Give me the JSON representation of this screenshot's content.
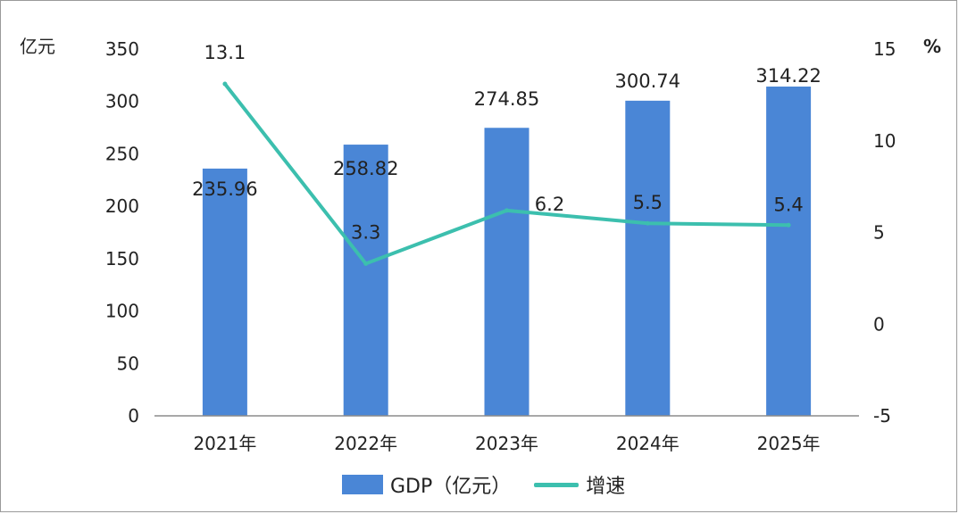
{
  "chart_data": {
    "type": "bar",
    "categories": [
      "2021年",
      "2022年",
      "2023年",
      "2024年",
      "2025年"
    ],
    "series": [
      {
        "name": "GDP（亿元）",
        "type": "bar",
        "axis": "left",
        "color": "#4a86d6",
        "values": [
          235.96,
          258.82,
          274.85,
          300.74,
          314.22
        ]
      },
      {
        "name": "增速",
        "type": "line",
        "axis": "right",
        "color": "#3cbfae",
        "values": [
          13.1,
          3.3,
          6.2,
          5.5,
          5.4
        ]
      }
    ],
    "left_axis": {
      "unit": "亿元",
      "ylim": [
        0,
        350
      ],
      "ticks": [
        0,
        50,
        100,
        150,
        200,
        250,
        300,
        350
      ]
    },
    "right_axis": {
      "unit": "%",
      "ylim": [
        -5,
        15
      ],
      "ticks": [
        -5,
        0,
        5,
        10,
        15
      ]
    },
    "legend_position": "bottom",
    "grid": false
  }
}
